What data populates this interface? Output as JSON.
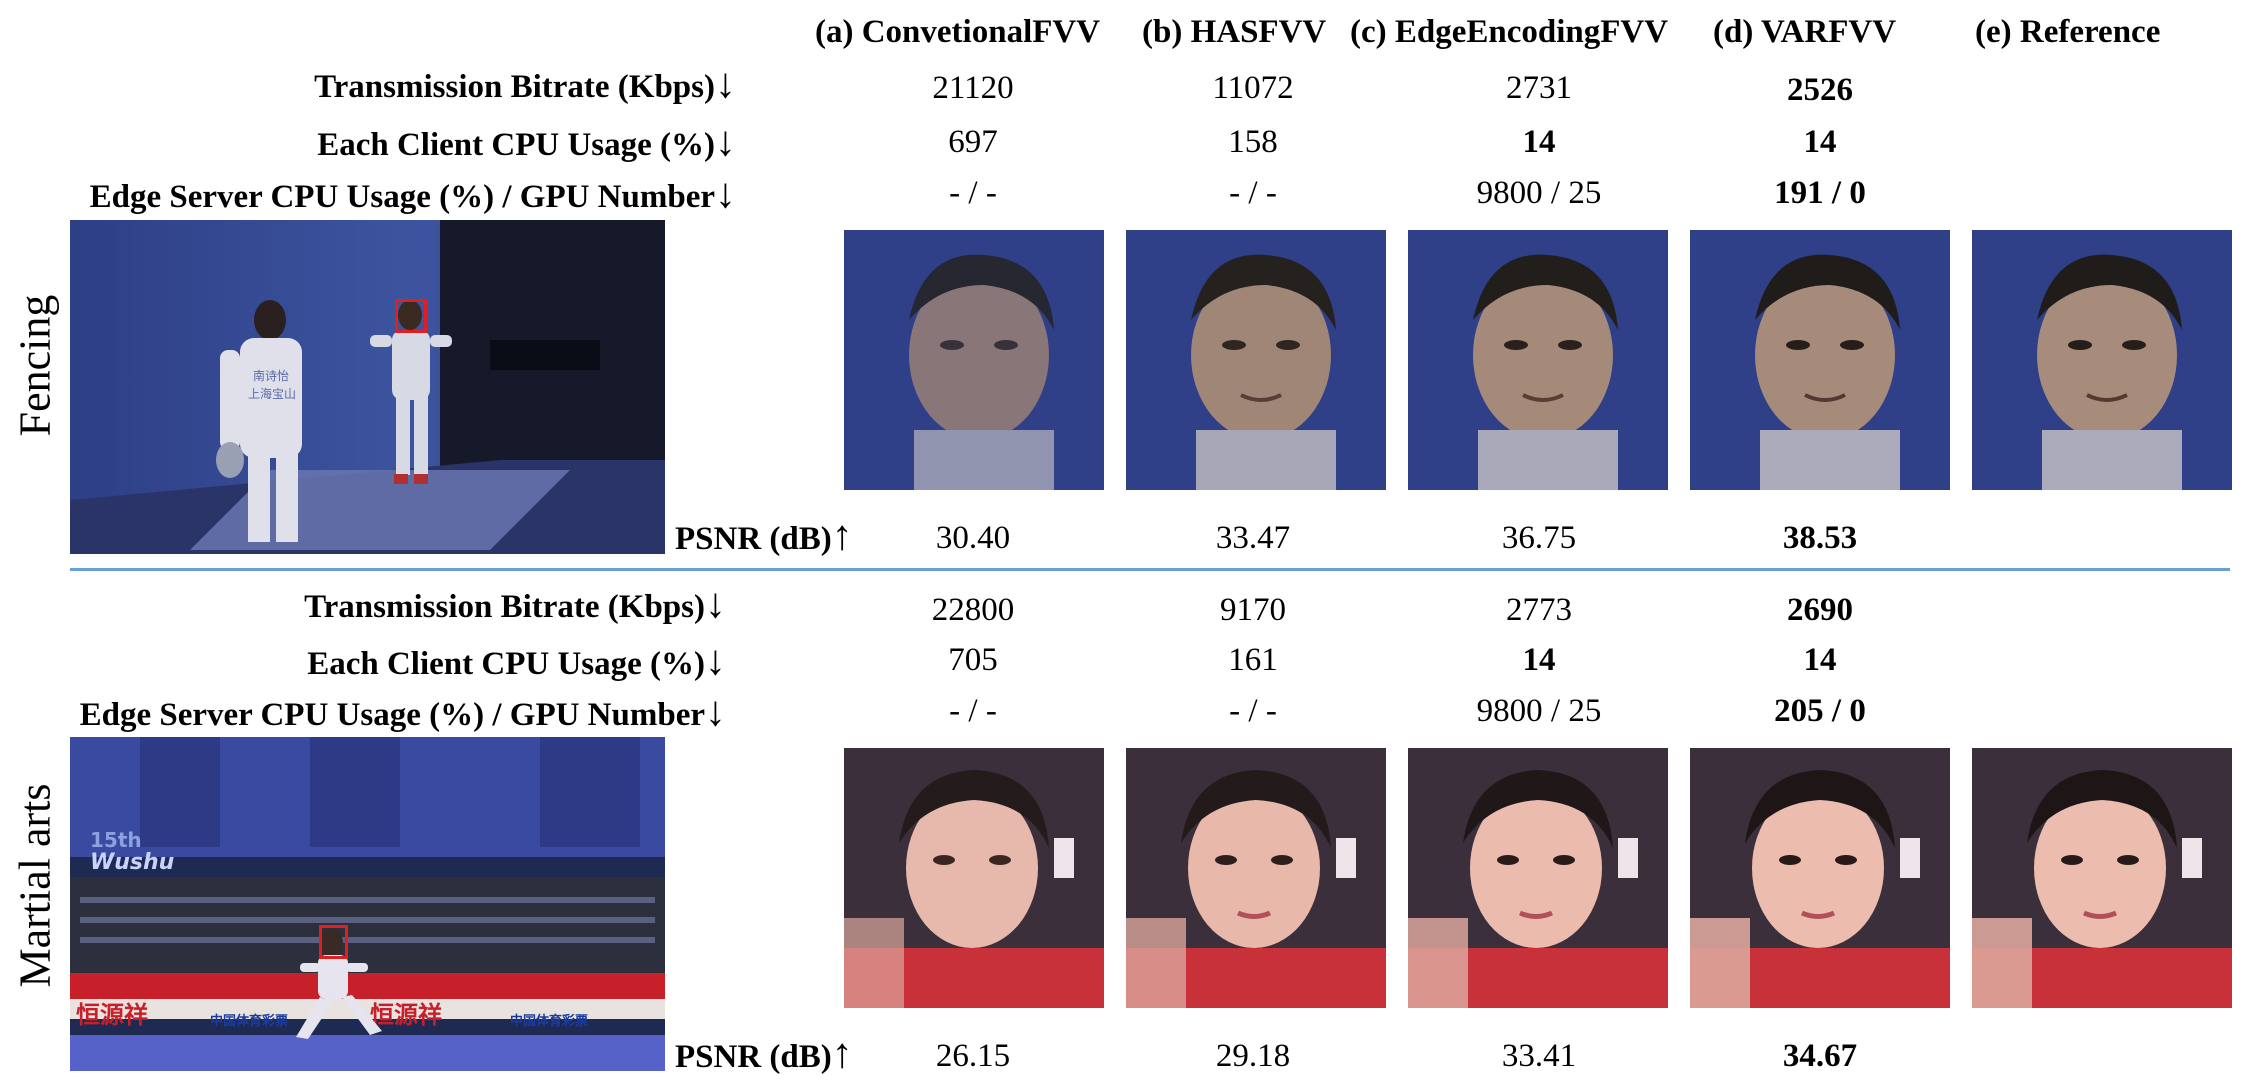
{
  "columns": [
    "(a) ConvetionalFVV",
    "(b) HASFVV",
    "(c) EdgeEncodingFVV",
    "(d) VARFVV",
    "(e) Reference"
  ],
  "metrics": {
    "bitrate_label": "Transmission Bitrate (Kbps)",
    "client_cpu_label": "Each Client CPU Usage (%)",
    "edge_label": "Edge Server CPU Usage (%) / GPU Number",
    "psnr_label": "PSNR (dB)",
    "down_arrow": "↓",
    "up_arrow": "↑"
  },
  "fencing": {
    "name": "Fencing",
    "bitrate": [
      "21120",
      "11072",
      "2731",
      "2526"
    ],
    "client_cpu": [
      "697",
      "158",
      "14",
      "14"
    ],
    "edge": [
      "- / -",
      "- / -",
      "9800 / 25",
      "191 / 0"
    ],
    "psnr": [
      "30.40",
      "33.47",
      "36.75",
      "38.53"
    ]
  },
  "martial": {
    "name": "Martial arts",
    "bitrate": [
      "22800",
      "9170",
      "2773",
      "2690"
    ],
    "client_cpu": [
      "705",
      "161",
      "14",
      "14"
    ],
    "edge": [
      "- / -",
      "- / -",
      "9800 / 25",
      "205 / 0"
    ],
    "psnr": [
      "26.15",
      "29.18",
      "33.41",
      "34.67"
    ]
  },
  "colors": {
    "divider": "#6a9fd4",
    "highlight_box": "#e02020",
    "fencing_wall": "#3a4f96",
    "martial_banner": "#c8202a"
  },
  "photo_text": {
    "fencing_shirt_line1": "南诗怡",
    "fencing_shirt_line2": "上海宝山",
    "wushu_logo_line1": "15th",
    "wushu_logo_line2": "Wushu",
    "banner_brand1": "恒源祥",
    "banner_brand2": "中国体育彩票",
    "banner_brand3": "恒源祥",
    "banner_brand4": "中国体育彩票"
  }
}
